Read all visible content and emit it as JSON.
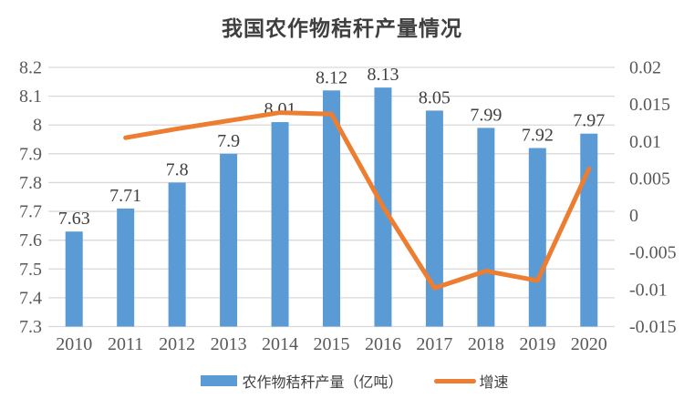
{
  "title": "我国农作物秸秆产量情况",
  "legend": {
    "bar_label": "农作物秸秆产量（亿吨）",
    "line_label": "增速"
  },
  "chart_data": {
    "type": "bar",
    "subtype": "combo-bar-line-dual-axis",
    "title": "我国农作物秸秆产量情况",
    "categories": [
      "2010",
      "2011",
      "2012",
      "2013",
      "2014",
      "2015",
      "2016",
      "2017",
      "2018",
      "2019",
      "2020"
    ],
    "series": [
      {
        "name": "农作物秸秆产量（亿吨）",
        "type": "bar",
        "axis": "left",
        "values": [
          7.63,
          7.71,
          7.8,
          7.9,
          8.01,
          8.12,
          8.13,
          8.05,
          7.99,
          7.92,
          7.97
        ],
        "labels": [
          "7.63",
          "7.71",
          "7.8",
          "7.9",
          "8.01",
          "8.12",
          "8.13",
          "8.05",
          "7.99",
          "7.92",
          "7.97"
        ],
        "color": "#5B9BD5"
      },
      {
        "name": "增速",
        "type": "line",
        "axis": "right",
        "values": [
          null,
          0.0105,
          0.0117,
          0.0128,
          0.0139,
          0.0137,
          0.0012,
          -0.0098,
          -0.0075,
          -0.0088,
          0.0063
        ],
        "color": "#ED7D31"
      }
    ],
    "axis_left": {
      "min": 7.3,
      "max": 8.2,
      "ticks": [
        "8.2",
        "8.1",
        "8",
        "7.9",
        "7.8",
        "7.7",
        "7.6",
        "7.5",
        "7.4",
        "7.3"
      ]
    },
    "axis_right": {
      "min": -0.015,
      "max": 0.02,
      "ticks": [
        "0.02",
        "0.015",
        "0.01",
        "0.005",
        "0",
        "-0.005",
        "-0.01",
        "-0.015"
      ]
    },
    "grid": true,
    "legend_position": "bottom",
    "colors": {
      "gridline": "#D9D9D9",
      "tick_text": "#595959",
      "data_label_text": "#404040",
      "title_text": "#3f3f3f"
    }
  }
}
